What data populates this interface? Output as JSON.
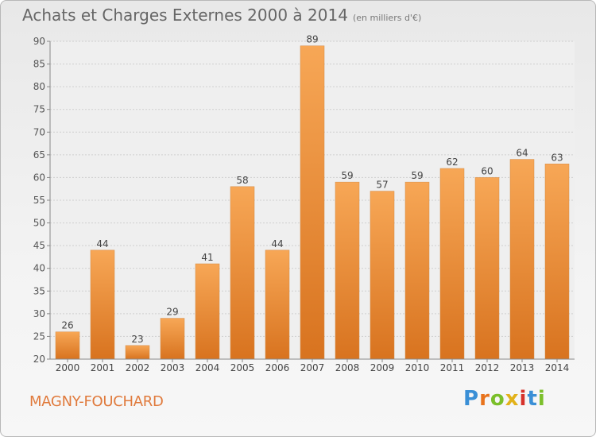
{
  "header": {
    "title": "Achats et Charges Externes 2000 à 2014",
    "unit": "(en milliers d'€)"
  },
  "footer": {
    "town": "MAGNY-FOUCHARD",
    "logo": "Proxiti"
  },
  "colors": {
    "bar_light": "#f7a756",
    "bar_dark": "#d8731f",
    "town": "#e07a3c"
  },
  "chart_data": {
    "type": "bar",
    "title": "Achats et Charges Externes 2000 à 2014",
    "subtitle": "(en milliers d'€)",
    "xlabel": "",
    "ylabel": "",
    "ylim": [
      20,
      90
    ],
    "yticks": [
      20,
      25,
      30,
      35,
      40,
      45,
      50,
      55,
      60,
      65,
      70,
      75,
      80,
      85,
      90
    ],
    "grid": true,
    "categories": [
      "2000",
      "2001",
      "2002",
      "2003",
      "2004",
      "2005",
      "2006",
      "2007",
      "2008",
      "2009",
      "2010",
      "2011",
      "2012",
      "2013",
      "2014"
    ],
    "values": [
      26,
      44,
      23,
      29,
      41,
      58,
      44,
      89,
      59,
      57,
      59,
      62,
      60,
      64,
      63
    ]
  }
}
